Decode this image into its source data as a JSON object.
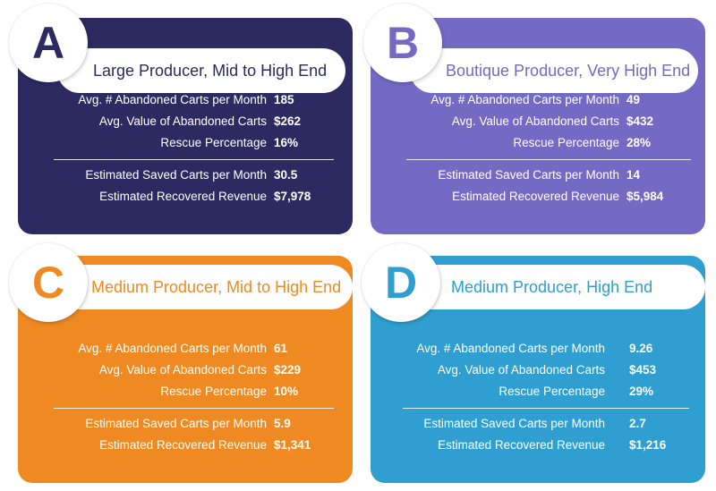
{
  "cards": [
    {
      "letter": "A",
      "title": "Large Producer, Mid to High End",
      "color": "#2c2a60",
      "accent": "#2c2a60",
      "rows": [
        {
          "label": "Avg. # Abandoned Carts per Month",
          "value": "185"
        },
        {
          "label": "Avg. Value of Abandoned Carts",
          "value": "$262"
        },
        {
          "label": "Rescue Percentage",
          "value": "16%"
        },
        {
          "label": "Estimated Saved Carts per Month",
          "value": "30.5"
        },
        {
          "label": "Estimated Recovered Revenue",
          "value": "$7,978"
        }
      ]
    },
    {
      "letter": "B",
      "title": "Boutique Producer, Very High End",
      "color": "#7569c4",
      "accent": "#7569c4",
      "rows": [
        {
          "label": "Avg. # Abandoned Carts per Month",
          "value": "49"
        },
        {
          "label": "Avg. Value of Abandoned Carts",
          "value": "$432"
        },
        {
          "label": "Rescue Percentage",
          "value": "28%"
        },
        {
          "label": "Estimated Saved Carts per Month",
          "value": "14"
        },
        {
          "label": "Estimated Recovered Revenue",
          "value": "$5,984"
        }
      ]
    },
    {
      "letter": "C",
      "title": "Medium Producer, Mid to High End",
      "color": "#ef8a23",
      "accent": "#ef8a23",
      "rows": [
        {
          "label": "Avg. # Abandoned Carts per Month",
          "value": "61"
        },
        {
          "label": "Avg. Value of Abandoned Carts",
          "value": "$229"
        },
        {
          "label": "Rescue Percentage",
          "value": "10%"
        },
        {
          "label": "Estimated Saved Carts per Month",
          "value": "5.9"
        },
        {
          "label": "Estimated Recovered Revenue",
          "value": "$1,341"
        }
      ]
    },
    {
      "letter": "D",
      "title": "Medium Producer, High End",
      "color": "#2e9fd0",
      "accent": "#2e9fd0",
      "rows": [
        {
          "label": "Avg. # Abandoned Carts per Month",
          "value": "9.26"
        },
        {
          "label": "Avg. Value of Abandoned Carts",
          "value": "$453"
        },
        {
          "label": "Rescue Percentage",
          "value": "29%"
        },
        {
          "label": "Estimated Saved Carts per Month",
          "value": "2.7"
        },
        {
          "label": "Estimated Recovered Revenue",
          "value": "$1,216"
        }
      ]
    }
  ]
}
